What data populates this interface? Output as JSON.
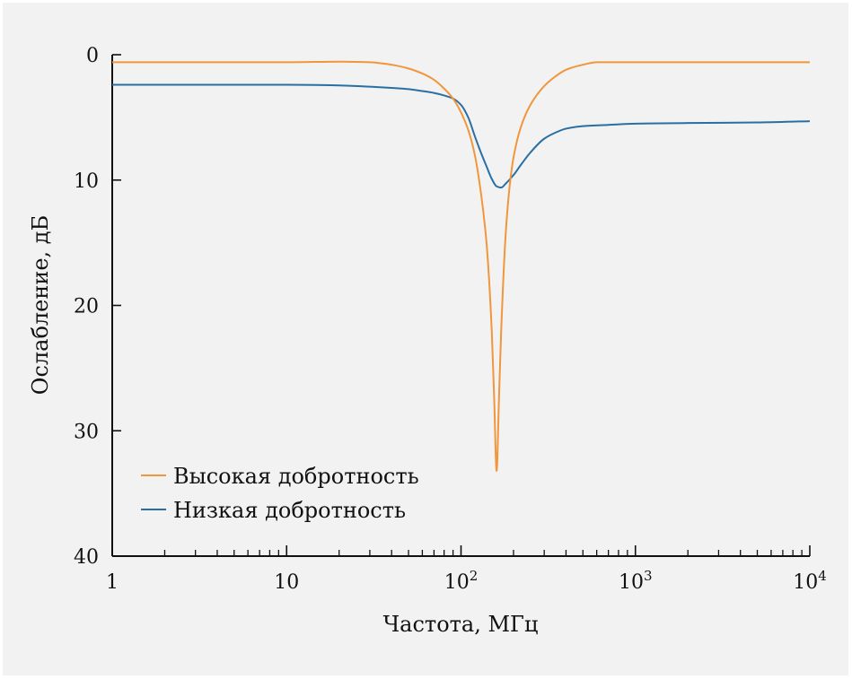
{
  "chart_data": {
    "type": "line",
    "xlabel": "Частота, МГц",
    "ylabel": "Ослабление, дБ",
    "x_scale": "log",
    "xlim": [
      1,
      10000
    ],
    "ylim": [
      0,
      40
    ],
    "y_inverted": true,
    "grid": false,
    "legend_position": "bottom-left",
    "x_ticks": [
      {
        "value": 1,
        "base": "1",
        "exp": ""
      },
      {
        "value": 10,
        "base": "10",
        "exp": ""
      },
      {
        "value": 100,
        "base": "10",
        "exp": "2"
      },
      {
        "value": 1000,
        "base": "10",
        "exp": "3"
      },
      {
        "value": 10000,
        "base": "10",
        "exp": "4"
      }
    ],
    "y_ticks": [
      0,
      10,
      20,
      30,
      40
    ],
    "series": [
      {
        "name": "Высокая добротность",
        "color": "#f0963c",
        "x": [
          1,
          5,
          10,
          20,
          30,
          40,
          50,
          60,
          70,
          80,
          90,
          100,
          110,
          120,
          130,
          140,
          150,
          155,
          160,
          165,
          170,
          180,
          190,
          200,
          220,
          250,
          300,
          350,
          400,
          500,
          600,
          700,
          800,
          1000,
          2000,
          5000,
          10000
        ],
        "values": [
          0.6,
          0.6,
          0.6,
          0.55,
          0.6,
          0.8,
          1.1,
          1.5,
          2.0,
          2.7,
          3.5,
          4.6,
          6.0,
          8.0,
          11.0,
          15.0,
          22.0,
          27.5,
          33.2,
          27.5,
          22.0,
          14.5,
          10.5,
          8.2,
          5.8,
          4.0,
          2.5,
          1.7,
          1.2,
          0.8,
          0.6,
          0.6,
          0.6,
          0.6,
          0.6,
          0.6,
          0.6
        ]
      },
      {
        "name": "Низкая добротность",
        "color": "#2a6fa3",
        "x": [
          1,
          5,
          10,
          20,
          30,
          40,
          50,
          60,
          70,
          80,
          90,
          100,
          110,
          120,
          130,
          140,
          150,
          160,
          170,
          180,
          200,
          220,
          250,
          300,
          350,
          400,
          500,
          700,
          1000,
          2000,
          5000,
          10000
        ],
        "values": [
          2.4,
          2.4,
          2.4,
          2.45,
          2.55,
          2.65,
          2.75,
          2.9,
          3.05,
          3.25,
          3.5,
          4.0,
          5.0,
          6.5,
          7.8,
          8.9,
          9.9,
          10.5,
          10.6,
          10.3,
          9.6,
          8.8,
          7.8,
          6.7,
          6.2,
          5.9,
          5.7,
          5.6,
          5.5,
          5.45,
          5.4,
          5.3
        ]
      }
    ]
  }
}
